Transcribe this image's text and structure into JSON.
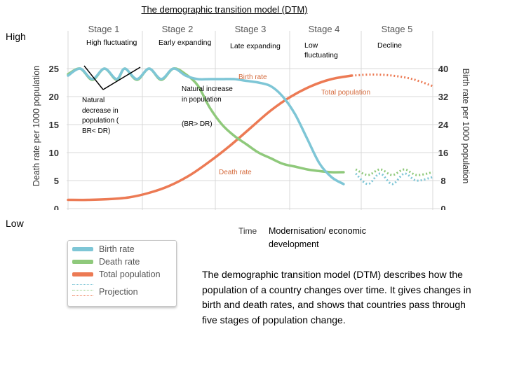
{
  "title": "The demographic transition model (DTM)",
  "high_label": "High",
  "low_label": "Low",
  "stages": [
    {
      "header": "Stage 1",
      "desc": "High fluctuating"
    },
    {
      "header": "Stage 2",
      "desc": "Early expanding"
    },
    {
      "header": "Stage 3",
      "desc": "Late expanding"
    },
    {
      "header": "Stage 4",
      "desc": "Low fluctuating"
    },
    {
      "header": "Stage 5",
      "desc": "Decline"
    }
  ],
  "annotations": {
    "natural_decrease": "Natural decrease in population ( BR< DR)",
    "natural_increase": "Natural increase in population",
    "br_gt_dr": "(BR> DR)",
    "birth_rate": "Birth rate",
    "total_population": "Total population",
    "death_rate": "Death rate"
  },
  "x_axis_label": "Time",
  "modernisation": "Modernisation/ economic development",
  "description": "The demographic transition model (DTM) describes how the population of a country changes over time. It gives changes in birth and death rates, and shows that countries pass through five stages of population change.",
  "legend": {
    "birth": "Birth rate",
    "death": "Death rate",
    "total": "Total population",
    "projection": "Projection"
  },
  "colors": {
    "birth": "#7ec6d6",
    "death": "#8fc97b",
    "total": "#ec7a54",
    "grid": "#d9d9d9",
    "axis_text": "#333333"
  },
  "chart_data": {
    "type": "line",
    "x_label": "Time",
    "y_left": {
      "label": "Death rate per 1000 population",
      "ylim": [
        0,
        25
      ],
      "ticks": [
        0,
        5,
        10,
        15,
        20,
        25
      ]
    },
    "y_right": {
      "label": "Birth rate per 1000 population",
      "ylim": [
        0,
        40
      ],
      "ticks": [
        0,
        8,
        16,
        24,
        32,
        40
      ]
    },
    "stage_boundaries": [
      "Stage 1",
      "Stage 2",
      "Stage 3",
      "Stage 4",
      "Stage 5"
    ],
    "series": [
      {
        "name": "Birth rate",
        "axis": "right",
        "x": [
          0,
          3,
          6,
          9,
          12,
          14,
          17,
          20,
          23,
          26,
          29,
          32,
          35,
          38,
          41,
          44,
          47,
          50,
          53,
          56,
          59,
          62,
          65,
          68,
          71,
          74,
          77,
          80,
          83,
          86,
          90
        ],
        "values": [
          38,
          40,
          37,
          40,
          37,
          40,
          37,
          40,
          37,
          40,
          38,
          37,
          37,
          37,
          37,
          36.5,
          36,
          35,
          32,
          27,
          20,
          13,
          9,
          7,
          10,
          7,
          10,
          7,
          10,
          8,
          9
        ]
      },
      {
        "name": "Death rate",
        "axis": "left",
        "x": [
          0,
          3,
          6,
          9,
          12,
          14,
          17,
          20,
          23,
          26,
          29,
          32,
          35,
          38,
          41,
          44,
          47,
          50,
          53,
          56,
          59,
          62,
          65,
          68,
          71,
          74,
          77,
          80,
          83,
          86,
          90
        ],
        "values": [
          24,
          25,
          23,
          25,
          23,
          25,
          23,
          25,
          23,
          25,
          24,
          22,
          18,
          15,
          13,
          11.5,
          10,
          9,
          8,
          7.5,
          7,
          6.7,
          6.5,
          6.5,
          7,
          6,
          7,
          6,
          7,
          6,
          6.5
        ]
      },
      {
        "name": "Total population",
        "axis": "right",
        "x": [
          0,
          5,
          10,
          15,
          20,
          25,
          30,
          35,
          40,
          45,
          50,
          55,
          60,
          65,
          70,
          75,
          80,
          85,
          90
        ],
        "values": [
          2.5,
          2.5,
          2.7,
          3.2,
          4.5,
          6.5,
          9.5,
          13.5,
          18,
          23,
          28,
          32,
          35,
          37,
          38,
          38.3,
          38,
          37,
          35
        ]
      }
    ],
    "projection_from_x": 70
  }
}
